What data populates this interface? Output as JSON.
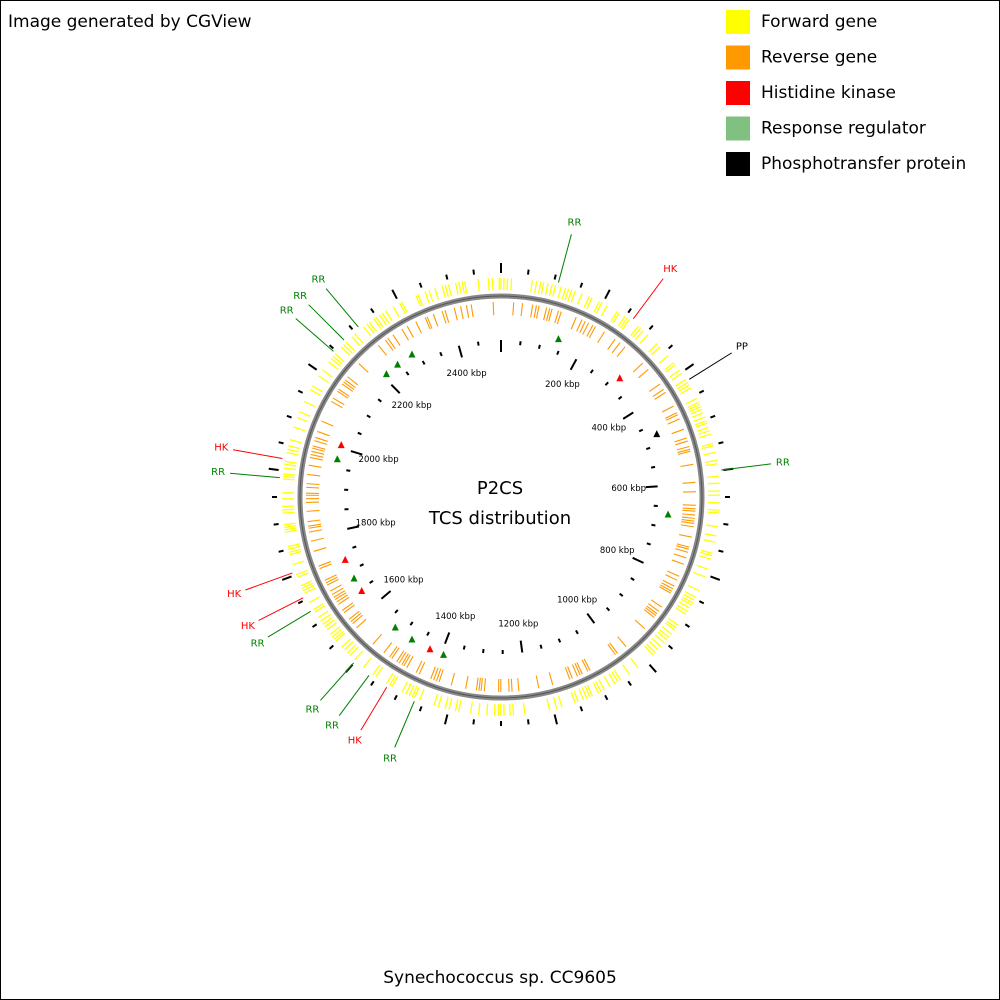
{
  "header": {
    "title": "Image generated by CGView"
  },
  "legend": [
    {
      "label": "Forward gene",
      "color": "#ffff00"
    },
    {
      "label": "Reverse gene",
      "color": "#ff9900"
    },
    {
      "label": "Histidine kinase",
      "color": "#ff0000"
    },
    {
      "label": "Response regulator",
      "color": "#80c080"
    },
    {
      "label": "Phosphotransfer protein",
      "color": "#000000"
    }
  ],
  "map": {
    "title": "P2CS",
    "subtitle": "TCS distribution",
    "tick_labels": [
      "200 kbp",
      "400 kbp",
      "600 kbp",
      "800 kbp",
      "1000 kbp",
      "1200 kbp",
      "1400 kbp",
      "1600 kbp",
      "1800 kbp",
      "2000 kbp",
      "2200 kbp",
      "2400 kbp"
    ],
    "callouts": [
      {
        "label": "RR",
        "color": "#008000"
      },
      {
        "label": "HK",
        "color": "#ff0000"
      },
      {
        "label": "PP",
        "color": "#000000"
      },
      {
        "label": "RR",
        "color": "#008000"
      },
      {
        "label": "RR",
        "color": "#008000"
      },
      {
        "label": "RR",
        "color": "#008000"
      },
      {
        "label": "RR",
        "color": "#008000"
      },
      {
        "label": "HK",
        "color": "#ff0000"
      },
      {
        "label": "RR",
        "color": "#008000"
      },
      {
        "label": "HK",
        "color": "#ff0000"
      },
      {
        "label": "HK",
        "color": "#ff0000"
      },
      {
        "label": "RR",
        "color": "#008000"
      },
      {
        "label": "RR",
        "color": "#008000"
      },
      {
        "label": "RR",
        "color": "#008000"
      },
      {
        "label": "HK",
        "color": "#ff0000"
      },
      {
        "label": "RR",
        "color": "#008000"
      }
    ]
  },
  "footer": {
    "caption": "Synechococcus sp. CC9605"
  }
}
